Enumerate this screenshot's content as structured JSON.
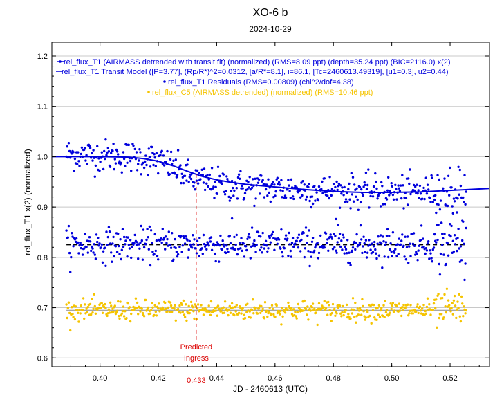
{
  "chart_data": {
    "type": "scatter",
    "title": "XO-6 b",
    "subtitle": "2024-10-29",
    "xlabel": "JD - 2460613 (UTC)",
    "ylabel": "rel_flux_T1 x(2) (normalized)",
    "xlim": [
      0.3835,
      0.5335
    ],
    "ylim": [
      0.5825,
      1.2275
    ],
    "x_ticks": [
      0.4,
      0.42,
      0.44,
      0.46,
      0.48,
      0.5,
      0.52
    ],
    "x_tick_labels": [
      "0.40",
      "0.42",
      "0.44",
      "0.46",
      "0.48",
      "0.50",
      "0.52"
    ],
    "y_ticks": [
      0.6,
      0.7,
      0.8,
      0.9,
      1.0,
      1.1,
      1.2
    ],
    "y_tick_labels": [
      "0.6",
      "0.7",
      "0.8",
      "0.9",
      "1.0",
      "1.1",
      "1.2"
    ],
    "grid": "horizontal",
    "legend_placement": "top",
    "legend": [
      {
        "label": "rel_flux_T1 (AIRMASS detrended with transit fit) (normalized) (RMS=8.09 ppt) (depth=35.24 ppt) (BIC=2116.0) x(2)",
        "color": "#0000dd",
        "marker": "dot-line"
      },
      {
        "label": "rel_flux_T1 Transit Model ([P=3.77], (Rp/R*)^2=0.0312, [a/R*=8.1], i=86.1, [Tc=2460613.49319], [u1=0.3], u2=0.44)",
        "color": "#0000dd",
        "marker": "line"
      },
      {
        "label": "rel_flux_T1 Residuals (RMS=0.00809) (chi^2/dof=4.38)",
        "color": "#0000dd",
        "marker": "dot"
      },
      {
        "label": "rel_flux_C5 (AIRMASS detrended) (normalized) (RMS=10.46 ppt)",
        "color": "#f5c400",
        "marker": "dot"
      }
    ],
    "series": [
      {
        "name": "rel_flux_T1 (AIRMASS detrended with transit fit) (normalized) (RMS=8.09 ppt) (depth=35.24 ppt) (BIC=2116.0) x(2)",
        "color": "#0000dd",
        "x_range": [
          0.3885,
          0.5255
        ],
        "n_points": 520,
        "trend": [
          [
            0.3885,
            1.005
          ],
          [
            0.4,
            1.002
          ],
          [
            0.41,
            1.0
          ],
          [
            0.418,
            0.995
          ],
          [
            0.425,
            0.98
          ],
          [
            0.43,
            0.96
          ],
          [
            0.435,
            0.95
          ],
          [
            0.44,
            0.945
          ],
          [
            0.45,
            0.94
          ],
          [
            0.46,
            0.937
          ],
          [
            0.47,
            0.935
          ],
          [
            0.48,
            0.932
          ],
          [
            0.5,
            0.93
          ],
          [
            0.52,
            0.93
          ],
          [
            0.5255,
            0.93
          ]
        ],
        "scatter_sd": 0.016
      },
      {
        "name": "rel_flux_T1 Transit Model ([P=3.77], (Rp/R*)^2=0.0312, [a/R*=8.1], i=86.1, [Tc=2460613.49319], [u1=0.3], u2=0.44)",
        "color": "#0000dd",
        "x": [
          0.3835,
          0.4,
          0.41,
          0.415,
          0.42,
          0.425,
          0.43,
          0.435,
          0.44,
          0.445,
          0.45,
          0.46,
          0.47,
          0.48,
          0.49,
          0.5,
          0.51,
          0.52,
          0.5335
        ],
        "y": [
          1.0,
          1.0,
          0.999,
          0.996,
          0.991,
          0.982,
          0.971,
          0.961,
          0.954,
          0.949,
          0.945,
          0.94,
          0.935,
          0.931,
          0.929,
          0.929,
          0.93,
          0.933,
          0.937
        ]
      },
      {
        "name": "rel_flux_T1 Residuals (RMS=0.00809) (chi^2/dof=4.38)",
        "color": "#0000dd",
        "baseline": 0.825,
        "x_range": [
          0.3885,
          0.5255
        ],
        "n_points": 520,
        "scatter_sd": 0.016
      },
      {
        "name": "rel_flux_C5 (AIRMASS detrended) (normalized) (RMS=10.46 ppt)",
        "color": "#f5c400",
        "baseline": 0.695,
        "x_range": [
          0.3885,
          0.5255
        ],
        "n_points": 520,
        "scatter_sd": 0.01
      }
    ],
    "reference_lines": [
      {
        "y": 0.825,
        "style": "dashed",
        "color": "#000000"
      },
      {
        "y": 0.695,
        "style": "solid",
        "color": "#888888"
      }
    ],
    "annotations": [
      {
        "x": 0.433,
        "text": "Predicted",
        "text2": "Ingress",
        "label": "0.433",
        "color": "#dd0000",
        "style": "dashed"
      }
    ]
  }
}
